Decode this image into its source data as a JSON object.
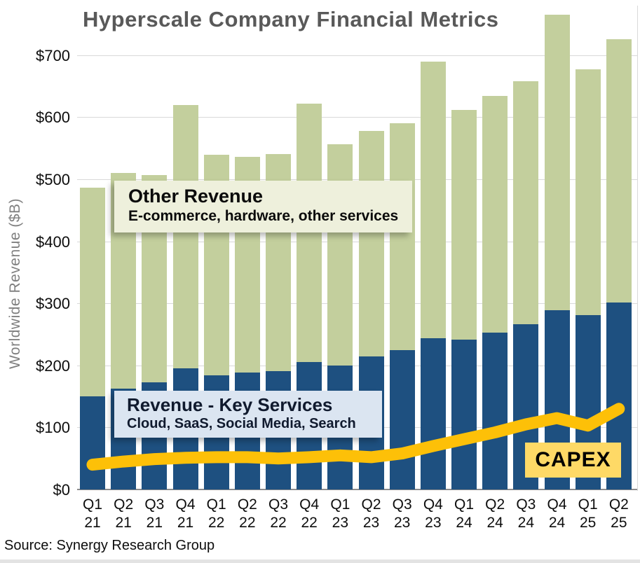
{
  "title": "Hyperscale Company Financial Metrics",
  "source": "Source: Synergy Research Group",
  "y_axis": {
    "label": "Worldwide Revenue ($B)",
    "ticks": [
      "$0",
      "$100",
      "$200",
      "$300",
      "$400",
      "$500",
      "$600",
      "$700"
    ]
  },
  "annotations": {
    "other_revenue": {
      "title": "Other Revenue",
      "subtitle": "E-commerce, hardware, other services"
    },
    "key_services": {
      "title": "Revenue - Key Services",
      "subtitle": "Cloud, SaaS, Social Media, Search"
    },
    "capex": {
      "label": "CAPEX"
    }
  },
  "colors": {
    "key_services_bar": "#1e5080",
    "other_revenue_bar": "#c3cf9d",
    "capex_line": "#fdc008",
    "capex_box_bg": "#fed966",
    "other_box_bg": "#eef0dc",
    "key_box_bg": "#dbe5f1",
    "title_text": "#595959",
    "gridline": "#d9d9d9"
  },
  "chart_data": {
    "type": "bar",
    "stacked": true,
    "title": "Hyperscale Company Financial Metrics",
    "ylabel": "Worldwide Revenue ($B)",
    "xlabel": "",
    "ylim": [
      0,
      780
    ],
    "yticks": [
      0,
      100,
      200,
      300,
      400,
      500,
      600,
      700
    ],
    "grid": true,
    "legend_position": "inline-annotations",
    "categories": [
      "Q1 21",
      "Q2 21",
      "Q3 21",
      "Q4 21",
      "Q1 22",
      "Q2 22",
      "Q3 22",
      "Q4 22",
      "Q1 23",
      "Q2 23",
      "Q3 23",
      "Q4 23",
      "Q1 24",
      "Q2 24",
      "Q3 24",
      "Q4 24",
      "Q1 25",
      "Q2 25"
    ],
    "series": [
      {
        "name": "Revenue - Key Services",
        "color": "#1e5080",
        "values": [
          150,
          163,
          173,
          195,
          184,
          189,
          191,
          205,
          200,
          215,
          225,
          244,
          242,
          253,
          266,
          289,
          281,
          301
        ]
      },
      {
        "name": "Other Revenue",
        "color": "#c3cf9d",
        "values": [
          337,
          347,
          334,
          425,
          356,
          347,
          350,
          417,
          357,
          363,
          365,
          446,
          370,
          381,
          392,
          476,
          396,
          425
        ]
      }
    ],
    "totals": [
      487,
      510,
      507,
      620,
      540,
      536,
      541,
      622,
      557,
      578,
      590,
      690,
      612,
      634,
      658,
      765,
      677,
      726
    ],
    "line_series": [
      {
        "name": "CAPEX",
        "color": "#fdc008",
        "stroke_width": 17,
        "values": [
          40,
          45,
          49,
          51,
          52,
          52,
          50,
          52,
          55,
          52,
          58,
          70,
          81,
          92,
          105,
          115,
          103,
          130
        ]
      }
    ]
  }
}
